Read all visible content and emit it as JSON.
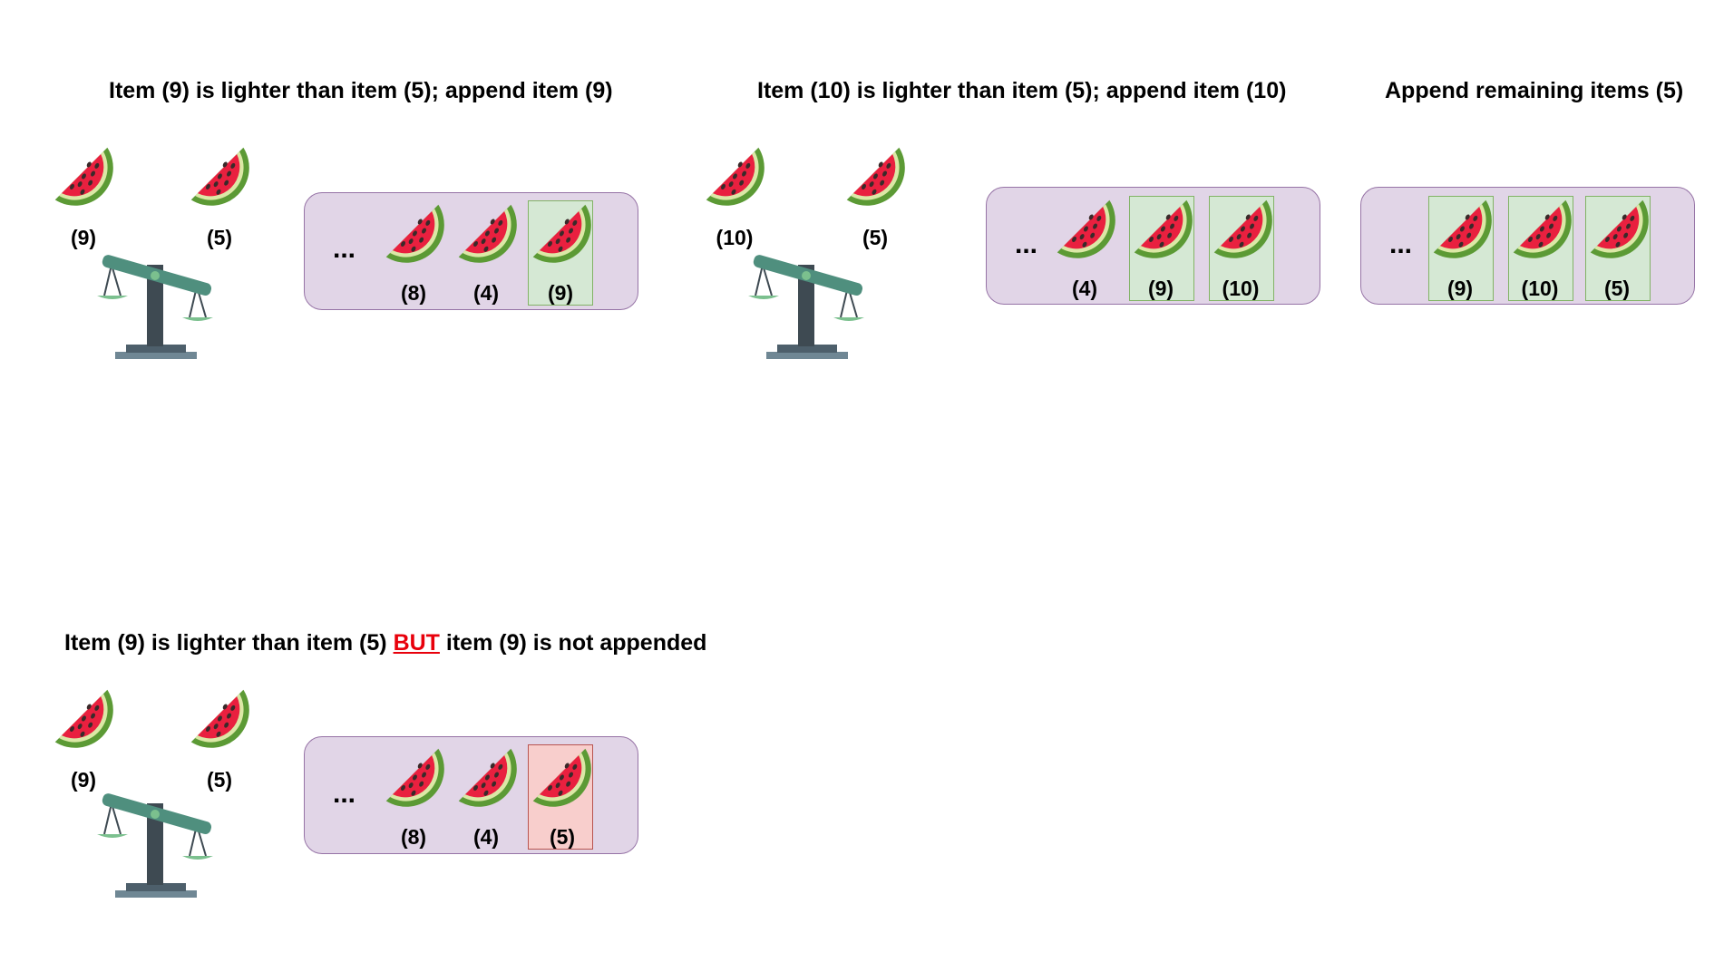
{
  "colors": {
    "box_fill": "#e1d5e7",
    "box_stroke": "#9673a6",
    "appended_fill": "#d5e8d4",
    "error_fill": "#f8cecc",
    "melon_flesh": "#e9203f",
    "melon_rind": "#5c9a35",
    "scale_beam": "#4f8f7e",
    "scale_post": "#3e4a52",
    "accent_red": "#e8000b"
  },
  "panels": {
    "p1": {
      "title": "Item (9) is lighter than item (5); append item (9)",
      "left_label": "(9)",
      "right_label": "(5)",
      "ellipsis": "...",
      "items": [
        "(8)",
        "(4)",
        "(9)"
      ]
    },
    "p2": {
      "title": "Item (10) is lighter than item (5); append item (10)",
      "left_label": "(10)",
      "right_label": "(5)",
      "ellipsis": "...",
      "items": [
        "(4)",
        "(9)",
        "(10)"
      ]
    },
    "p3": {
      "title": "Append remaining items (5)",
      "ellipsis": "...",
      "items": [
        "(9)",
        "(10)",
        "(5)"
      ]
    },
    "p4": {
      "title_before": "Item (9) is lighter than item (5) ",
      "title_emphasis": "BUT",
      "title_after": " item (9) is not appended",
      "left_label": "(9)",
      "right_label": "(5)",
      "ellipsis": "...",
      "items": [
        "(8)",
        "(4)",
        "(5)"
      ]
    }
  }
}
